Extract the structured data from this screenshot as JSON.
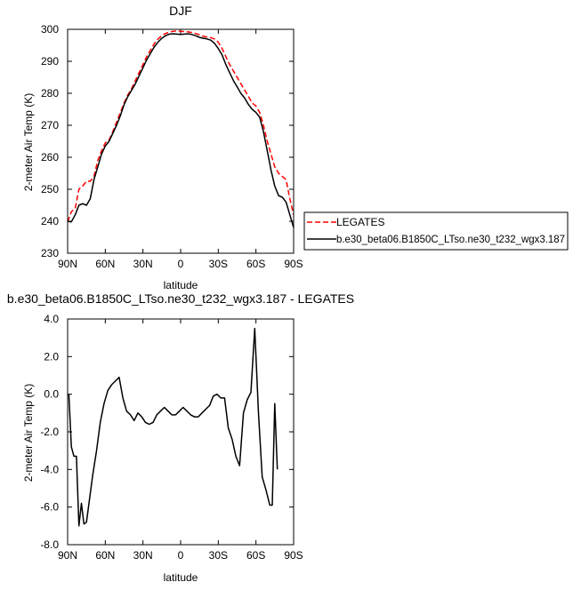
{
  "chart_data": [
    {
      "type": "line",
      "title": "DJF",
      "xlabel": "latitude",
      "ylabel": "2-meter Air Temp (K)",
      "xlim": [
        90,
        -90
      ],
      "ylim": [
        230,
        300
      ],
      "x_ticks": [
        90,
        60,
        30,
        0,
        -30,
        -60,
        -90
      ],
      "x_tick_labels": [
        "90N",
        "60N",
        "30N",
        "0",
        "30S",
        "60S",
        "90S"
      ],
      "y_ticks": [
        230,
        240,
        250,
        260,
        270,
        280,
        290,
        300
      ],
      "y_tick_labels": [
        "230",
        "240",
        "250",
        "260",
        "270",
        "280",
        "290",
        "300"
      ],
      "legend_position": "right",
      "series": [
        {
          "name": "LEGATES",
          "color": "#ff0000",
          "dash": "dashed",
          "points": [
            [
              90,
              239.8
            ],
            [
              87,
              243
            ],
            [
              84,
              244
            ],
            [
              81,
              250
            ],
            [
              78,
              251
            ],
            [
              75,
              252.5
            ],
            [
              72,
              252.5
            ],
            [
              69,
              254
            ],
            [
              66,
              259
            ],
            [
              63,
              262
            ],
            [
              60,
              264.5
            ],
            [
              57,
              265.5
            ],
            [
              54,
              268
            ],
            [
              51,
              271
            ],
            [
              48,
              274
            ],
            [
              45,
              277
            ],
            [
              42,
              279.5
            ],
            [
              39,
              281.5
            ],
            [
              36,
              284
            ],
            [
              33,
              286.5
            ],
            [
              30,
              289
            ],
            [
              27,
              291.5
            ],
            [
              24,
              293.5
            ],
            [
              21,
              295.5
            ],
            [
              18,
              297
            ],
            [
              15,
              298
            ],
            [
              12,
              298.7
            ],
            [
              9,
              299.1
            ],
            [
              6,
              299.4
            ],
            [
              3,
              299.5
            ],
            [
              0,
              299.4
            ],
            [
              -3,
              299.3
            ],
            [
              -6,
              299.2
            ],
            [
              -9,
              299
            ],
            [
              -12,
              298.7
            ],
            [
              -15,
              298.3
            ],
            [
              -18,
              297.8
            ],
            [
              -21,
              297.6
            ],
            [
              -24,
              297.4
            ],
            [
              -27,
              297
            ],
            [
              -30,
              296
            ],
            [
              -33,
              294
            ],
            [
              -36,
              291.5
            ],
            [
              -39,
              289
            ],
            [
              -42,
              287
            ],
            [
              -45,
              285
            ],
            [
              -48,
              283
            ],
            [
              -51,
              281
            ],
            [
              -54,
              279
            ],
            [
              -57,
              277
            ],
            [
              -60,
              276
            ],
            [
              -63,
              274
            ],
            [
              -66,
              270
            ],
            [
              -69,
              265
            ],
            [
              -72,
              261
            ],
            [
              -75,
              257
            ],
            [
              -78,
              255
            ],
            [
              -81,
              254
            ],
            [
              -84,
              253
            ],
            [
              -87,
              247
            ],
            [
              -90,
              242
            ]
          ]
        },
        {
          "name": "b.e30_beta06.B1850C_LTso.ne30_t232_wgx3.187",
          "color": "#000000",
          "dash": "solid",
          "points": [
            [
              90,
              240
            ],
            [
              87,
              239.8
            ],
            [
              84,
              242
            ],
            [
              81,
              245
            ],
            [
              78,
              245.5
            ],
            [
              75,
              245
            ],
            [
              72,
              247
            ],
            [
              69,
              253
            ],
            [
              66,
              257
            ],
            [
              63,
              261
            ],
            [
              60,
              263.5
            ],
            [
              57,
              265
            ],
            [
              54,
              267.5
            ],
            [
              51,
              270
            ],
            [
              48,
              273
            ],
            [
              45,
              276.5
            ],
            [
              42,
              279
            ],
            [
              39,
              281
            ],
            [
              36,
              283
            ],
            [
              33,
              285.5
            ],
            [
              30,
              288
            ],
            [
              27,
              290.5
            ],
            [
              24,
              292.5
            ],
            [
              21,
              294.5
            ],
            [
              18,
              296
            ],
            [
              15,
              297.2
            ],
            [
              12,
              298
            ],
            [
              9,
              298.5
            ],
            [
              6,
              298.6
            ],
            [
              3,
              298.5
            ],
            [
              0,
              298.4
            ],
            [
              -3,
              298.5
            ],
            [
              -6,
              298.6
            ],
            [
              -9,
              298.4
            ],
            [
              -12,
              298
            ],
            [
              -15,
              297.5
            ],
            [
              -18,
              297.2
            ],
            [
              -21,
              297
            ],
            [
              -24,
              296.6
            ],
            [
              -27,
              295.6
            ],
            [
              -30,
              294
            ],
            [
              -33,
              292
            ],
            [
              -36,
              289
            ],
            [
              -39,
              286.5
            ],
            [
              -42,
              284
            ],
            [
              -45,
              282
            ],
            [
              -48,
              280
            ],
            [
              -51,
              278.5
            ],
            [
              -54,
              276.5
            ],
            [
              -57,
              275
            ],
            [
              -60,
              274
            ],
            [
              -63,
              272.5
            ],
            [
              -66,
              268
            ],
            [
              -69,
              262
            ],
            [
              -72,
              256
            ],
            [
              -75,
              251
            ],
            [
              -78,
              248
            ],
            [
              -81,
              247.5
            ],
            [
              -84,
              246
            ],
            [
              -87,
              242
            ],
            [
              -90,
              238
            ]
          ]
        }
      ]
    },
    {
      "type": "line",
      "title": "b.e30_beta06.B1850C_LTso.ne30_t232_wgx3.187 - LEGATES",
      "xlabel": "latitude",
      "ylabel": "2-meter Air Temp (K)",
      "xlim": [
        90,
        -90
      ],
      "ylim": [
        -8,
        4
      ],
      "x_ticks": [
        90,
        60,
        30,
        0,
        -30,
        -60,
        -90
      ],
      "x_tick_labels": [
        "90N",
        "60N",
        "30N",
        "0",
        "30S",
        "60S",
        "90S"
      ],
      "y_ticks": [
        -8,
        -6,
        -4,
        -2,
        0,
        2,
        4
      ],
      "y_tick_labels": [
        "-8.0",
        "-6.0",
        "-4.0",
        "-2.0",
        "0.0",
        "2.0",
        "4.0"
      ],
      "series": [
        {
          "color": "#000000",
          "dash": "solid",
          "points": [
            [
              89,
              0
            ],
            [
              87,
              -2.8
            ],
            [
              85,
              -3.3
            ],
            [
              83,
              -3.3
            ],
            [
              81,
              -7
            ],
            [
              79,
              -5.8
            ],
            [
              77,
              -6.9
            ],
            [
              75,
              -6.8
            ],
            [
              73,
              -5.8
            ],
            [
              70,
              -4.3
            ],
            [
              67,
              -3
            ],
            [
              64,
              -1.5
            ],
            [
              61,
              -0.5
            ],
            [
              58,
              0.2
            ],
            [
              55,
              0.5
            ],
            [
              52,
              0.7
            ],
            [
              49,
              0.9
            ],
            [
              46,
              -0.2
            ],
            [
              43,
              -0.9
            ],
            [
              40,
              -1.1
            ],
            [
              37,
              -1.4
            ],
            [
              34,
              -1
            ],
            [
              31,
              -1.2
            ],
            [
              28,
              -1.5
            ],
            [
              25,
              -1.6
            ],
            [
              22,
              -1.5
            ],
            [
              19,
              -1.1
            ],
            [
              16,
              -0.9
            ],
            [
              13,
              -0.7
            ],
            [
              10,
              -0.9
            ],
            [
              7,
              -1.1
            ],
            [
              4,
              -1.1
            ],
            [
              1,
              -0.9
            ],
            [
              -2,
              -0.7
            ],
            [
              -5,
              -0.9
            ],
            [
              -8,
              -1.1
            ],
            [
              -11,
              -1.2
            ],
            [
              -14,
              -1.2
            ],
            [
              -17,
              -1
            ],
            [
              -20,
              -0.8
            ],
            [
              -23,
              -0.6
            ],
            [
              -26,
              -0.1
            ],
            [
              -29,
              0
            ],
            [
              -32,
              -0.2
            ],
            [
              -35,
              -0.2
            ],
            [
              -38,
              -1.8
            ],
            [
              -41,
              -2.4
            ],
            [
              -44,
              -3.3
            ],
            [
              -47,
              -3.8
            ],
            [
              -50,
              -1
            ],
            [
              -53,
              -0.3
            ],
            [
              -56,
              0.1
            ],
            [
              -59,
              3.5
            ],
            [
              -62,
              -1
            ],
            [
              -65,
              -4.4
            ],
            [
              -68,
              -5.1
            ],
            [
              -71,
              -5.9
            ],
            [
              -73,
              -5.9
            ],
            [
              -75,
              -0.5
            ],
            [
              -77,
              -4
            ]
          ]
        }
      ]
    }
  ]
}
